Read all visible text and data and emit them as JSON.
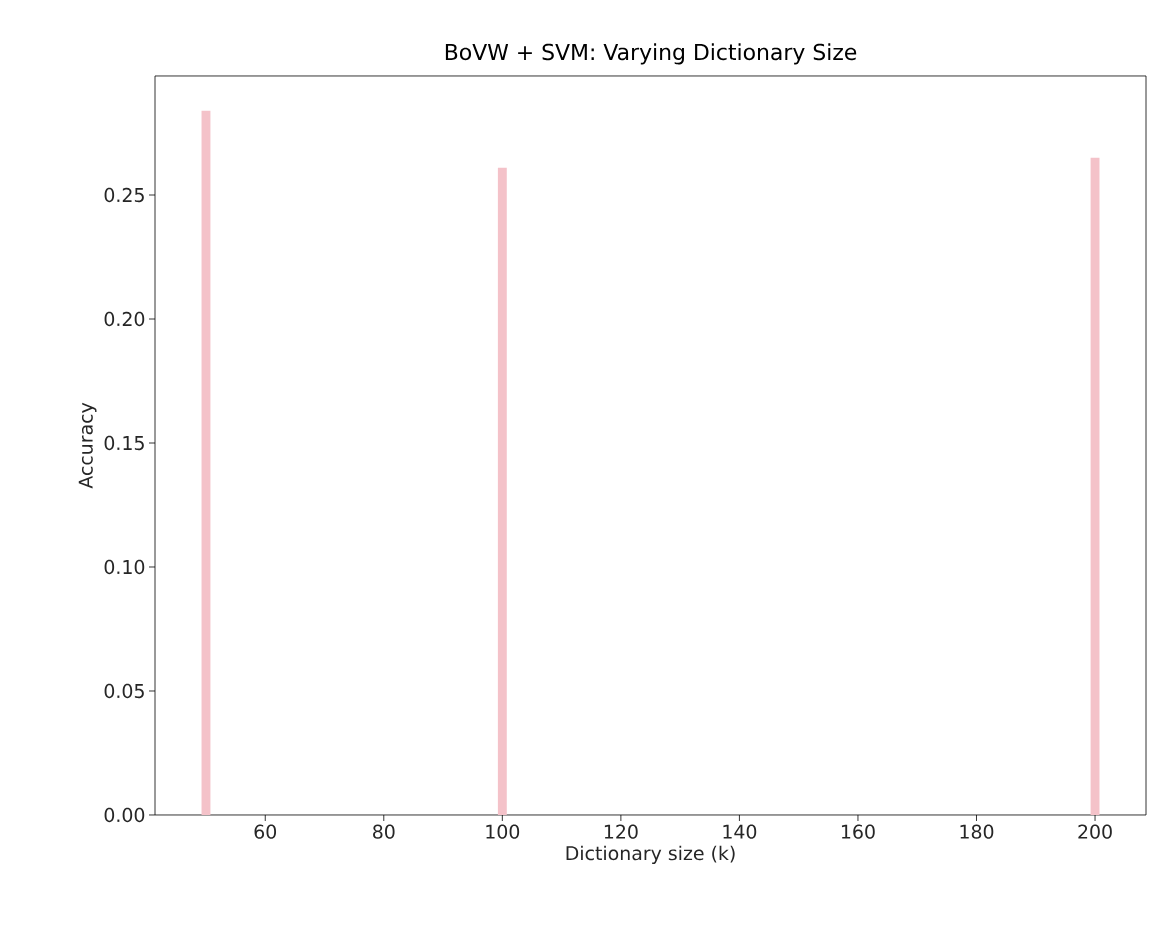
{
  "chart_data": {
    "type": "bar",
    "title": "BoVW + SVM: Varying Dictionary Size",
    "xlabel": "Dictionary size (k)",
    "ylabel": "Accuracy",
    "x": [
      50,
      100,
      200
    ],
    "values": [
      0.284,
      0.261,
      0.265
    ],
    "color": "#f4c2c9",
    "xlim": [
      41.4,
      208.6
    ],
    "xticks": [
      60,
      80,
      100,
      120,
      140,
      160,
      180,
      200
    ],
    "ylim": [
      0,
      0.298
    ],
    "yticks": [
      {
        "value": 0,
        "label": "0.00"
      },
      {
        "value": 0.05,
        "label": "0.05"
      },
      {
        "value": 0.1,
        "label": "0.10"
      },
      {
        "value": 0.15,
        "label": "0.15"
      },
      {
        "value": 0.2,
        "label": "0.20"
      },
      {
        "value": 0.25,
        "label": "0.25"
      }
    ],
    "grid": false
  }
}
